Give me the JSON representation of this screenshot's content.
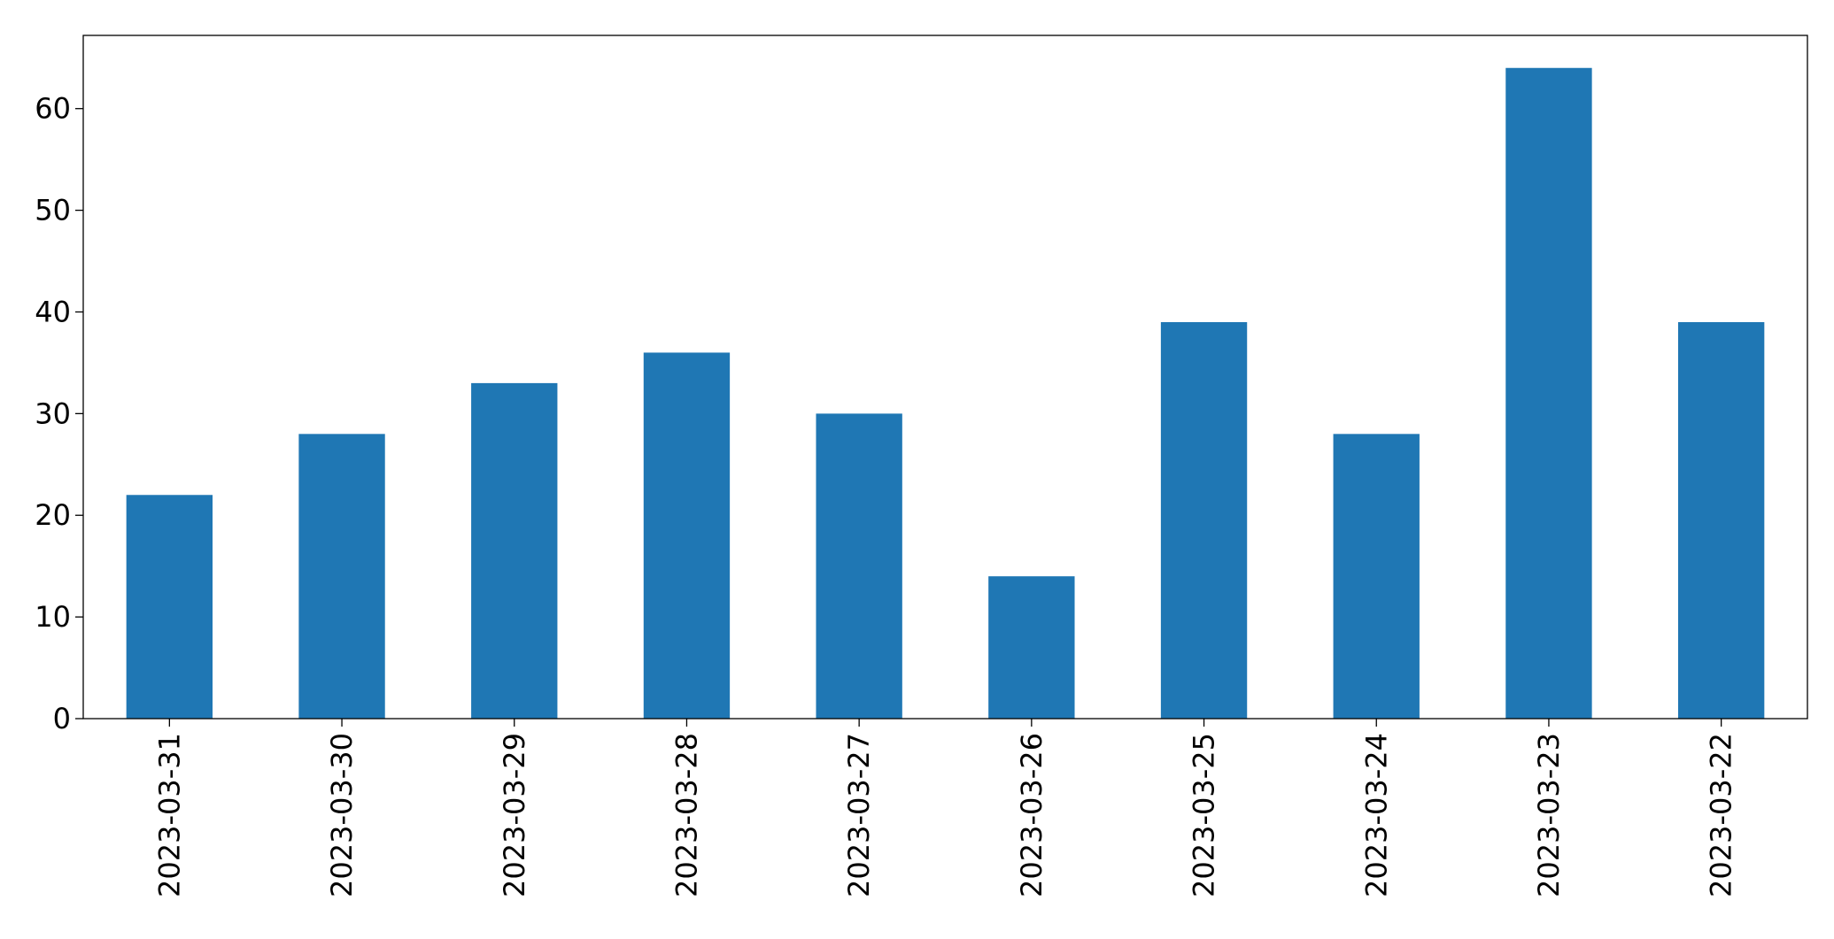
{
  "chart_data": {
    "type": "bar",
    "categories": [
      "2023-03-31",
      "2023-03-30",
      "2023-03-29",
      "2023-03-28",
      "2023-03-27",
      "2023-03-26",
      "2023-03-25",
      "2023-03-24",
      "2023-03-23",
      "2023-03-22"
    ],
    "values": [
      22,
      28,
      33,
      36,
      30,
      14,
      39,
      28,
      64,
      39
    ],
    "color": "#1f77b4",
    "ylim": [
      0,
      67.2
    ],
    "yticks": [
      0,
      10,
      20,
      30,
      40,
      50,
      60
    ],
    "grid": false
  }
}
